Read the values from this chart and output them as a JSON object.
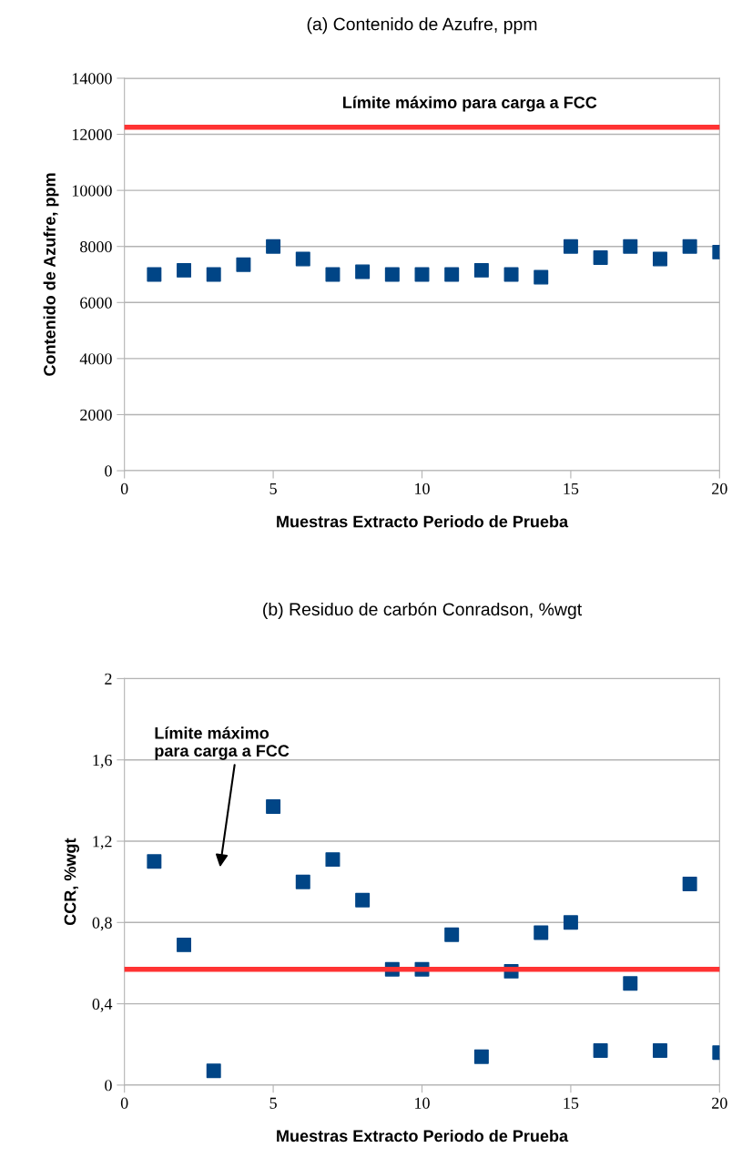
{
  "chart_data": [
    {
      "type": "scatter",
      "title": "(a) Contenido de Azufre, ppm",
      "xlabel": "Muestras Extracto Periodo de Prueba",
      "ylabel": "Contenido de Azufre, ppm",
      "x": [
        1,
        2,
        3,
        4,
        5,
        6,
        7,
        8,
        9,
        10,
        11,
        12,
        13,
        14,
        15,
        16,
        17,
        18,
        19,
        20
      ],
      "series": [
        {
          "color": "#004586",
          "values": [
            7000,
            7150,
            7000,
            7350,
            8000,
            7550,
            7000,
            7100,
            7000,
            7000,
            7000,
            7150,
            7000,
            6900,
            8000,
            7600,
            8000,
            7550,
            8000,
            7800
          ]
        }
      ],
      "marker": "square",
      "xlim": [
        0,
        20
      ],
      "xticks": [
        0,
        5,
        10,
        15,
        20
      ],
      "ylim": [
        0,
        14000
      ],
      "yticks": [
        0,
        2000,
        4000,
        6000,
        8000,
        10000,
        12000,
        14000
      ],
      "grid": "y",
      "ref_lines": [
        {
          "axis": "y",
          "value": 12250,
          "label": "Límite máximo para carga a FCC",
          "color": "#ff3333"
        }
      ]
    },
    {
      "type": "scatter",
      "title": "(b) Residuo de carbón Conradson, %wgt",
      "xlabel": "Muestras Extracto Periodo de Prueba",
      "ylabel": "CCR, %wgt",
      "x": [
        1,
        2,
        3,
        4,
        5,
        6,
        7,
        8,
        9,
        10,
        11,
        12,
        13,
        14,
        15,
        16,
        17,
        18,
        19,
        20
      ],
      "series": [
        {
          "color": "#004586",
          "values": [
            1.1,
            0.69,
            0.07,
            null,
            1.37,
            1.0,
            1.11,
            0.91,
            0.57,
            0.57,
            0.74,
            0.14,
            0.56,
            0.75,
            0.8,
            0.17,
            0.5,
            0.17,
            0.99,
            0.16
          ]
        }
      ],
      "marker": "square",
      "xlim": [
        0,
        20
      ],
      "xticks": [
        0,
        5,
        10,
        15,
        20
      ],
      "ylim": [
        0,
        2
      ],
      "yticks": [
        0,
        {
          "value": 0.4,
          "label": "0,4"
        },
        {
          "value": 0.8,
          "label": "0,8"
        },
        {
          "value": 1.2,
          "label": "1,2"
        },
        {
          "value": 1.6,
          "label": "1,6"
        },
        2
      ],
      "grid": "y",
      "ref_lines": [
        {
          "axis": "y",
          "value": 0.57,
          "color": "#ff3333"
        }
      ],
      "annotations": [
        "Límite máximo\npara carga a FCC"
      ]
    }
  ]
}
